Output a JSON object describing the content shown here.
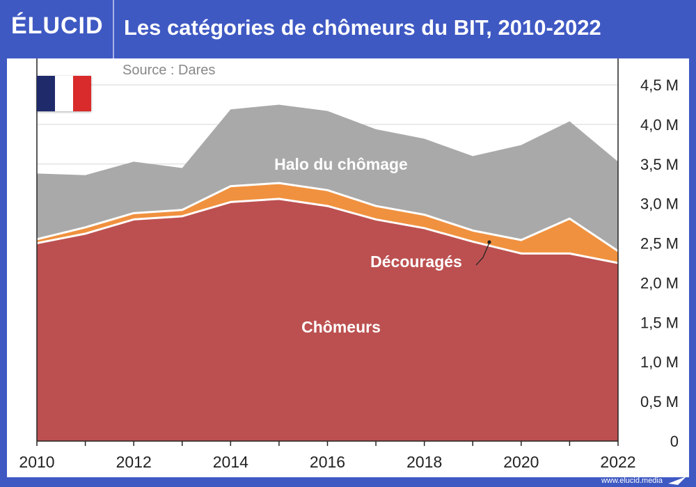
{
  "header": {
    "logo": "ÉLUCID",
    "title": "Les catégories de chômeurs du BIT, 2010-2022"
  },
  "source": "Source : Dares",
  "footer": {
    "url": "www.elucid.media"
  },
  "flag": {
    "colors": [
      "#1f2a6b",
      "#ffffff",
      "#d92b2b"
    ]
  },
  "colors": {
    "halo": "#a9a9a9",
    "decourages": "#f0913f",
    "chomeurs": "#bc5050",
    "brand": "#3f59c3"
  },
  "chart_data": {
    "type": "area",
    "stacked": true,
    "x": [
      2010,
      2011,
      2012,
      2013,
      2014,
      2015,
      2016,
      2017,
      2018,
      2019,
      2020,
      2021,
      2022
    ],
    "xticks": [
      "2010",
      "2012",
      "2014",
      "2016",
      "2018",
      "2020",
      "2022"
    ],
    "yticks": [
      "0",
      "0,5 M",
      "1,0 M",
      "1,5 M",
      "2,0 M",
      "2,5 M",
      "3,0 M",
      "3,5 M",
      "4,0 M",
      "4,5 M"
    ],
    "ylim": [
      0,
      4.5
    ],
    "yaxis_position": "right",
    "grid": true,
    "series": [
      {
        "name": "Chômeurs",
        "values": [
          2.5,
          2.62,
          2.8,
          2.84,
          3.02,
          3.06,
          2.97,
          2.8,
          2.69,
          2.52,
          2.37,
          2.37,
          2.25
        ]
      },
      {
        "name": "Découragés",
        "values": [
          0.05,
          0.08,
          0.08,
          0.08,
          0.2,
          0.2,
          0.2,
          0.17,
          0.17,
          0.14,
          0.17,
          0.44,
          0.15
        ]
      },
      {
        "name": "Halo du chômage",
        "values": [
          0.83,
          0.66,
          0.65,
          0.53,
          0.97,
          0.99,
          1.0,
          0.97,
          0.96,
          0.94,
          1.2,
          1.23,
          1.13
        ]
      }
    ]
  }
}
